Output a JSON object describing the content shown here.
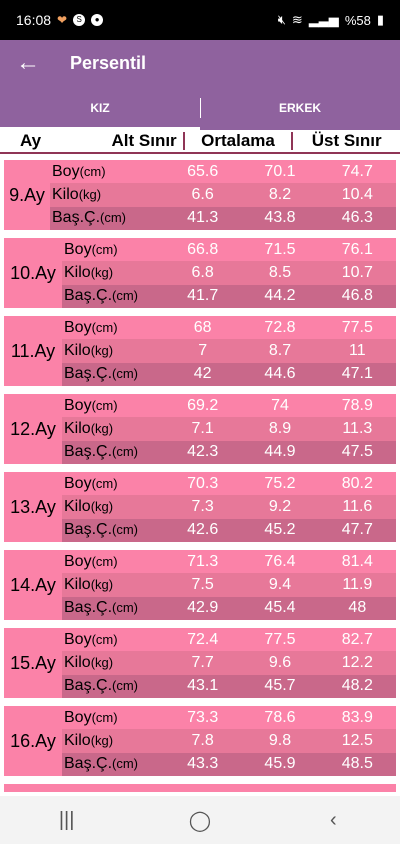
{
  "status": {
    "time": "16:08",
    "battery": "%58"
  },
  "appbar": {
    "title": "Persentil"
  },
  "tabs": [
    {
      "label": "KIZ"
    },
    {
      "label": "ERKEK"
    }
  ],
  "header": {
    "ay": "Ay",
    "alt": "Alt Sınır",
    "orta": "Ortalama",
    "ust": "Üst Sınır"
  },
  "labels": {
    "boy": "Boy",
    "boy_unit": "(cm)",
    "kilo": "Kilo",
    "kilo_unit": "(kg)",
    "bas": "Baş.Ç.",
    "bas_unit": "(cm)"
  },
  "months": [
    {
      "name": "9.Ay",
      "boy": [
        "65.6",
        "70.1",
        "74.7"
      ],
      "kilo": [
        "6.6",
        "8.2",
        "10.4"
      ],
      "bas": [
        "41.3",
        "43.8",
        "46.3"
      ]
    },
    {
      "name": "10.Ay",
      "boy": [
        "66.8",
        "71.5",
        "76.1"
      ],
      "kilo": [
        "6.8",
        "8.5",
        "10.7"
      ],
      "bas": [
        "41.7",
        "44.2",
        "46.8"
      ]
    },
    {
      "name": "11.Ay",
      "boy": [
        "68",
        "72.8",
        "77.5"
      ],
      "kilo": [
        "7",
        "8.7",
        "11"
      ],
      "bas": [
        "42",
        "44.6",
        "47.1"
      ]
    },
    {
      "name": "12.Ay",
      "boy": [
        "69.2",
        "74",
        "78.9"
      ],
      "kilo": [
        "7.1",
        "8.9",
        "11.3"
      ],
      "bas": [
        "42.3",
        "44.9",
        "47.5"
      ]
    },
    {
      "name": "13.Ay",
      "boy": [
        "70.3",
        "75.2",
        "80.2"
      ],
      "kilo": [
        "7.3",
        "9.2",
        "11.6"
      ],
      "bas": [
        "42.6",
        "45.2",
        "47.7"
      ]
    },
    {
      "name": "14.Ay",
      "boy": [
        "71.3",
        "76.4",
        "81.4"
      ],
      "kilo": [
        "7.5",
        "9.4",
        "11.9"
      ],
      "bas": [
        "42.9",
        "45.4",
        "48"
      ]
    },
    {
      "name": "15.Ay",
      "boy": [
        "72.4",
        "77.5",
        "82.7"
      ],
      "kilo": [
        "7.7",
        "9.6",
        "12.2"
      ],
      "bas": [
        "43.1",
        "45.7",
        "48.2"
      ]
    },
    {
      "name": "16.Ay",
      "boy": [
        "73.3",
        "78.6",
        "83.9"
      ],
      "kilo": [
        "7.8",
        "9.8",
        "12.5"
      ],
      "bas": [
        "43.3",
        "45.9",
        "48.5"
      ]
    }
  ],
  "icons": {
    "back": "arrow-left-icon",
    "nav_recent": "recent-apps-icon",
    "nav_home": "home-icon",
    "nav_back": "back-icon"
  }
}
